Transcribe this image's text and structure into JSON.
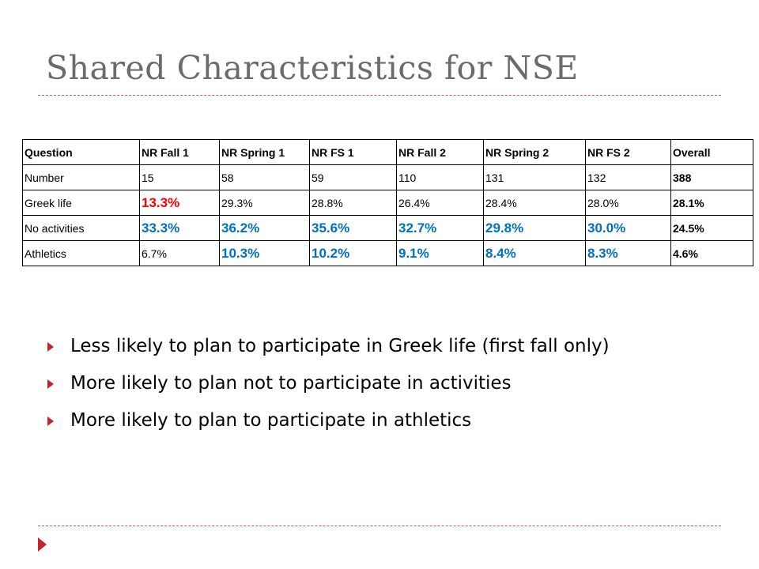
{
  "title": "Shared Characteristics for NSE",
  "colors": {
    "accent": "#c0262c",
    "red_value": "#ff0000",
    "blue_value": "#0070c0"
  },
  "table": {
    "headers": [
      "Question",
      "NR Fall 1",
      "NR Spring 1",
      "NR FS 1",
      "NR Fall 2",
      "NR Spring 2",
      "NR FS 2",
      "Overall"
    ],
    "rows": [
      [
        "Number",
        "15",
        "58",
        "59",
        "110",
        "131",
        "132",
        "388"
      ],
      [
        "Greek life",
        "13.3%",
        "29.3%",
        "28.8%",
        "26.4%",
        "28.4%",
        "28.0%",
        "28.1%"
      ],
      [
        "No activities",
        "33.3%",
        "36.2%",
        "35.6%",
        "32.7%",
        "29.8%",
        "30.0%",
        "24.5%"
      ],
      [
        "Athletics",
        "6.7%",
        "10.3%",
        "10.2%",
        "9.1%",
        "8.4%",
        "8.3%",
        "4.6%"
      ]
    ]
  },
  "bullets": [
    "Less likely to plan to participate in Greek life (first fall only)",
    "More likely to plan not to participate in activities",
    "More likely to plan to participate in athletics"
  ]
}
